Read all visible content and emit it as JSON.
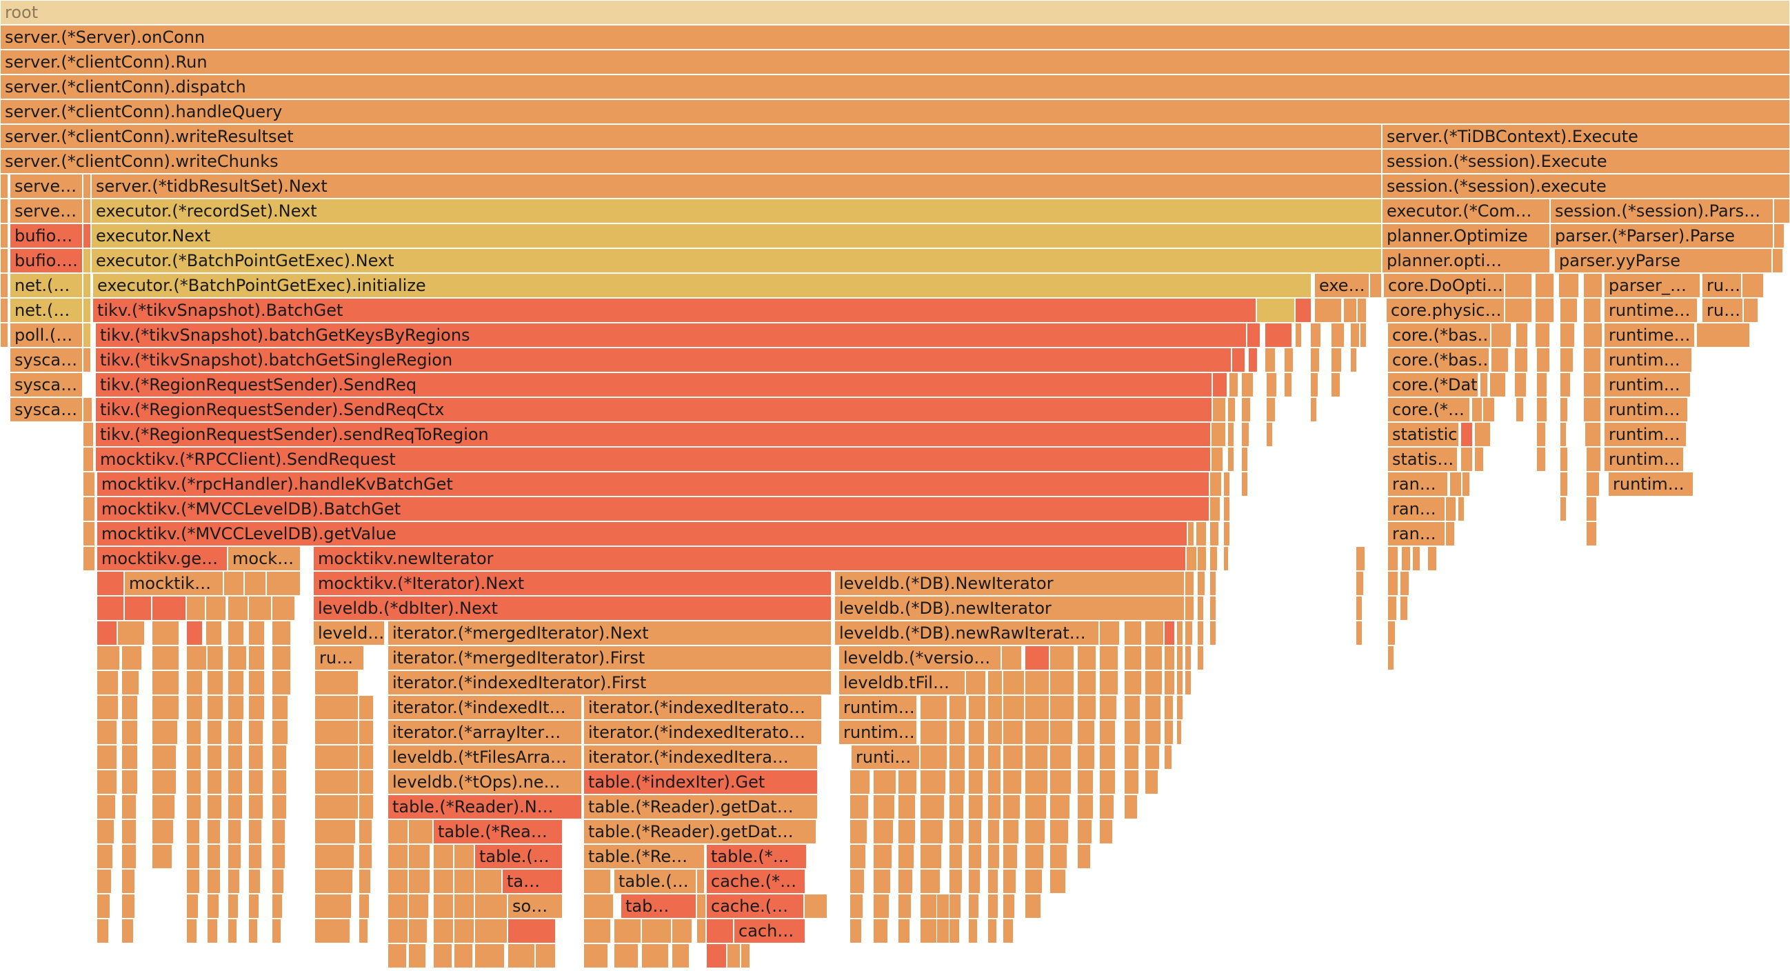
{
  "title": "root",
  "colors": {
    "root": "#efd39e",
    "orange": "#e89b5b",
    "lt": "#eda060",
    "yellow": "#e1bb5e",
    "red": "#ee6b4d",
    "coral": "#ef8556"
  },
  "frames": [
    {
      "label": "root"
    },
    {
      "label": "server.(*Server).onConn"
    },
    {
      "label": "server.(*clientConn).Run"
    },
    {
      "label": "server.(*clientConn).dispatch"
    },
    {
      "label": "server.(*clientConn).handleQuery"
    },
    {
      "label": "server.(*clientConn).writeResultset"
    },
    {
      "label": "server.(*TiDBContext).Execute"
    },
    {
      "label": "server.(*clientConn).writeChunks"
    },
    {
      "label": "session.(*session).Execute"
    },
    {
      "label": "serve…"
    },
    {
      "label": "server.(*tidbResultSet).Next"
    },
    {
      "label": "session.(*session).execute"
    },
    {
      "label": "serve…"
    },
    {
      "label": "executor.(*recordSet).Next"
    },
    {
      "label": "executor.(*Com…"
    },
    {
      "label": "session.(*session).Pars…"
    },
    {
      "label": "bufio…"
    },
    {
      "label": "executor.Next"
    },
    {
      "label": "planner.Optimize"
    },
    {
      "label": "parser.(*Parser).Parse"
    },
    {
      "label": "bufio…."
    },
    {
      "label": "executor.(*BatchPointGetExec).Next"
    },
    {
      "label": "planner.opti…"
    },
    {
      "label": "parser.yyParse"
    },
    {
      "label": "net.(…"
    },
    {
      "label": "executor.(*BatchPointGetExec).initialize"
    },
    {
      "label": "exe…"
    },
    {
      "label": "core.DoOpti…"
    },
    {
      "label": "parser_…"
    },
    {
      "label": "ru…"
    },
    {
      "label": "net.(…"
    },
    {
      "label": "tikv.(*tikvSnapshot).BatchGet"
    },
    {
      "label": "core.physic…"
    },
    {
      "label": "runtime…"
    },
    {
      "label": "ru…"
    },
    {
      "label": "poll.(…"
    },
    {
      "label": "tikv.(*tikvSnapshot).batchGetKeysByRegions"
    },
    {
      "label": "core.(*bas…"
    },
    {
      "label": "runtime…"
    },
    {
      "label": "sysca…"
    },
    {
      "label": "tikv.(*tikvSnapshot).batchGetSingleRegion"
    },
    {
      "label": "core.(*bas…"
    },
    {
      "label": "runtim…"
    },
    {
      "label": "sysca…"
    },
    {
      "label": "tikv.(*RegionRequestSender).SendReq"
    },
    {
      "label": "core.(*Dat…"
    },
    {
      "label": "runtim…"
    },
    {
      "label": "sysca…"
    },
    {
      "label": "tikv.(*RegionRequestSender).SendReqCtx"
    },
    {
      "label": "core.(*…"
    },
    {
      "label": "runtim…"
    },
    {
      "label": "tikv.(*RegionRequestSender).sendReqToRegion"
    },
    {
      "label": "statistic…"
    },
    {
      "label": "runtim…"
    },
    {
      "label": "mocktikv.(*RPCClient).SendRequest"
    },
    {
      "label": "statis…"
    },
    {
      "label": "runtim…"
    },
    {
      "label": "mocktikv.(*rpcHandler).handleKvBatchGet"
    },
    {
      "label": "ran…"
    },
    {
      "label": "runtim…"
    },
    {
      "label": "mocktikv.(*MVCCLevelDB).BatchGet"
    },
    {
      "label": "ran…"
    },
    {
      "label": "mocktikv.(*MVCCLevelDB).getValue"
    },
    {
      "label": "ran…"
    },
    {
      "label": "mocktikv.ge…"
    },
    {
      "label": "mock…"
    },
    {
      "label": "mocktikv.newIterator"
    },
    {
      "label": "mocktik…"
    },
    {
      "label": "mocktikv.(*Iterator).Next"
    },
    {
      "label": "leveldb.(*DB).NewIterator"
    },
    {
      "label": "leveldb.(*dbIter).Next"
    },
    {
      "label": "leveldb.(*DB).newIterator"
    },
    {
      "label": "leveld…"
    },
    {
      "label": "iterator.(*mergedIterator).Next"
    },
    {
      "label": "leveldb.(*DB).newRawIterat…"
    },
    {
      "label": "ru…"
    },
    {
      "label": "iterator.(*mergedIterator).First"
    },
    {
      "label": "leveldb.(*versio…"
    },
    {
      "label": "iterator.(*indexedIterator).First"
    },
    {
      "label": "leveldb.tFil…"
    },
    {
      "label": "iterator.(*indexedIt…"
    },
    {
      "label": "iterator.(*indexedIterato…"
    },
    {
      "label": "runtim…"
    },
    {
      "label": "iterator.(*arrayIter…"
    },
    {
      "label": "iterator.(*indexedIterato…"
    },
    {
      "label": "runtim…"
    },
    {
      "label": "leveldb.(*tFilesArra…"
    },
    {
      "label": "iterator.(*indexedItera…"
    },
    {
      "label": "runti…"
    },
    {
      "label": "leveldb.(*tOps).ne…"
    },
    {
      "label": "table.(*indexIter).Get"
    },
    {
      "label": "table.(*Reader).N…"
    },
    {
      "label": "table.(*Reader).getDat…"
    },
    {
      "label": "table.(*Rea…"
    },
    {
      "label": "table.(*Reader).getDat…"
    },
    {
      "label": "table.(…"
    },
    {
      "label": "table.(*Re…"
    },
    {
      "label": "table.(*…"
    },
    {
      "label": "ta…"
    },
    {
      "label": "table.(…"
    },
    {
      "label": "cache.(*…"
    },
    {
      "label": "so…"
    },
    {
      "label": "tab…"
    },
    {
      "label": "cache.(…"
    },
    {
      "label": "cach…"
    }
  ]
}
